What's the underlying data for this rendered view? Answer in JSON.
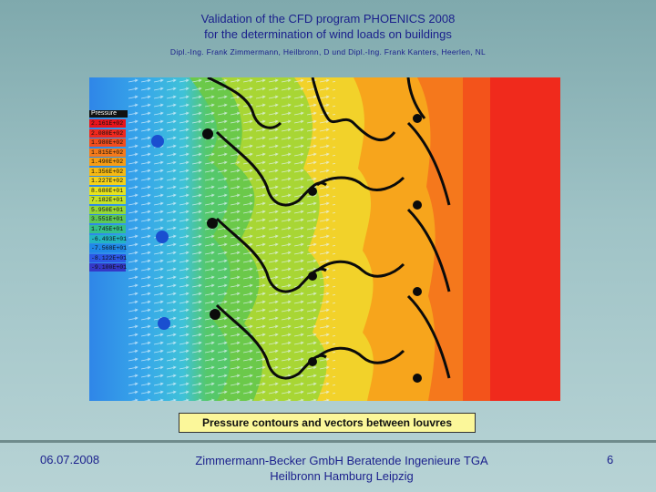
{
  "header": {
    "title_line1": "Validation of the CFD program PHOENICS 2008",
    "title_line2": "for the determination of wind loads on buildings",
    "authors": "Dipl.-Ing. Frank Zimmermann, Heilbronn, D und Dipl.-Ing. Frank Kanters, Heerlen, NL"
  },
  "figure": {
    "legend_title": "Pressure",
    "legend_values": [
      "2.161E+02",
      "2.080E+02",
      "1.980E+02",
      "1.815E+02",
      "1.490E+02",
      "1.356E+02",
      "1.227E+02",
      "8.680E+01",
      "7.182E+01",
      "5.950E+01",
      "3.551E+01",
      "1.745E+01",
      "-6.493E+01",
      "-7.568E+01",
      "-8.122E+01",
      "-9.100E+01"
    ],
    "legend_colors": [
      "#e8141c",
      "#f0281e",
      "#f24d1d",
      "#f57a1a",
      "#f79d14",
      "#f6b912",
      "#f3d11a",
      "#e6e21f",
      "#c4e22a",
      "#93d83a",
      "#5cc857",
      "#33bf8a",
      "#22b4c2",
      "#1f88e8",
      "#2b58e6",
      "#3438c8"
    ]
  },
  "caption": "Pressure contours and vectors between louvres",
  "footer": {
    "date": "06.07.2008",
    "company_line1": "Zimmermann-Becker GmbH Beratende Ingenieure TGA",
    "company_line2": "Heilbronn Hamburg Leipzig",
    "page": "6"
  }
}
